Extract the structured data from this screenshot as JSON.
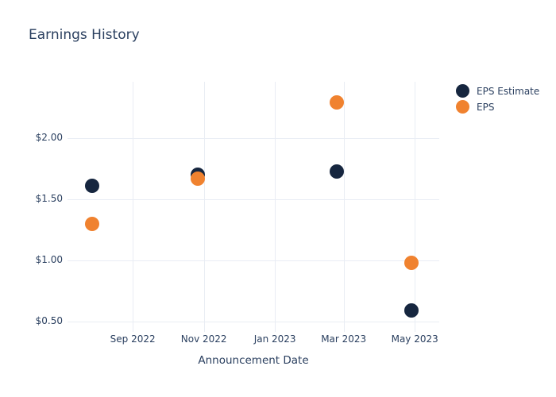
{
  "title": "Earnings History",
  "xaxis_title": "Announcement Date",
  "legend": {
    "items": [
      {
        "label": "EPS Estimate"
      },
      {
        "label": "EPS"
      }
    ]
  },
  "colors": {
    "eps_estimate": "#16263f",
    "eps": "#f0822f",
    "text": "#2a3f5f",
    "grid": "#e9edf4",
    "background": "#ffffff"
  },
  "chart_data": {
    "type": "scatter",
    "title": "Earnings History",
    "xlabel": "Announcement Date",
    "ylabel": "",
    "grid": true,
    "legend_position": "outside-top-right",
    "marker_size_px": 18,
    "x_ticks": [
      {
        "label": "Sep 2022",
        "date": "2022-09-01"
      },
      {
        "label": "Nov 2022",
        "date": "2022-11-01"
      },
      {
        "label": "Jan 2023",
        "date": "2023-01-01"
      },
      {
        "label": "Mar 2023",
        "date": "2023-03-01"
      },
      {
        "label": "May 2023",
        "date": "2023-05-01"
      }
    ],
    "y_ticks": [
      {
        "label": "$2.00",
        "value": 2.0
      },
      {
        "label": "$1.50",
        "value": 1.5
      },
      {
        "label": "$1.00",
        "value": 1.0
      },
      {
        "label": "$0.50",
        "value": 0.5
      }
    ],
    "x_range": [
      "2022-07-07",
      "2023-05-22"
    ],
    "y_range": [
      0.415,
      2.461
    ],
    "series": [
      {
        "name": "EPS Estimate",
        "color": "#16263f",
        "points": [
          {
            "x": "2022-07-28",
            "y": 1.61
          },
          {
            "x": "2022-10-27",
            "y": 1.7
          },
          {
            "x": "2023-02-23",
            "y": 1.73
          },
          {
            "x": "2023-04-28",
            "y": 0.59
          }
        ]
      },
      {
        "name": "EPS",
        "color": "#f0822f",
        "points": [
          {
            "x": "2022-07-28",
            "y": 1.3
          },
          {
            "x": "2022-10-27",
            "y": 1.67
          },
          {
            "x": "2023-02-23",
            "y": 2.29
          },
          {
            "x": "2023-04-28",
            "y": 0.98
          }
        ]
      }
    ]
  }
}
